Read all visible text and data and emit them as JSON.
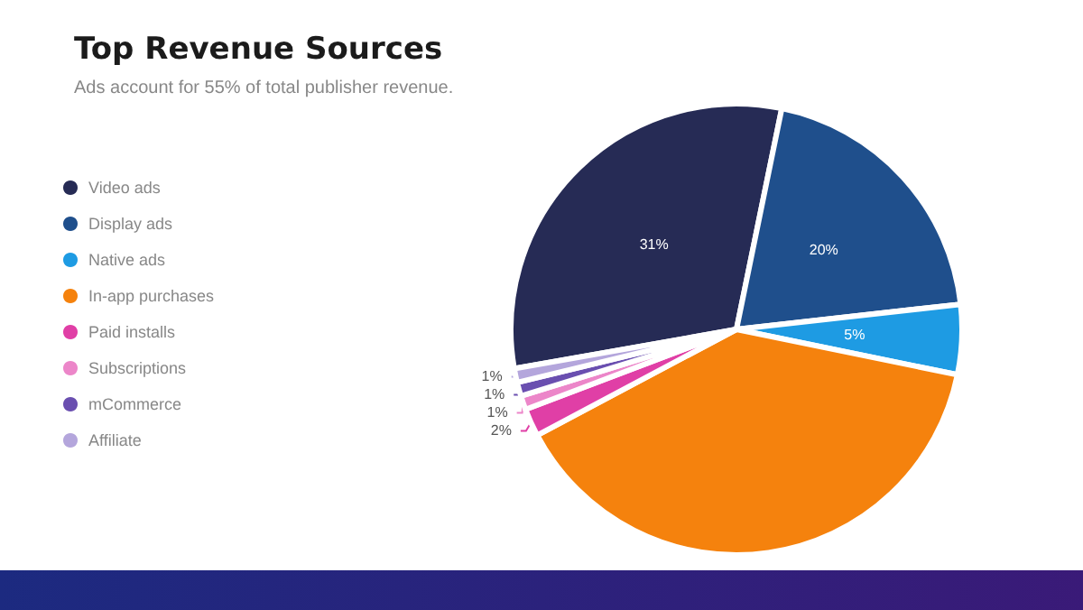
{
  "chart_data": {
    "type": "pie",
    "title": "Top Revenue Sources",
    "subtitle": "Ads account for 55% of total publisher revenue.",
    "categories": [
      "Video ads",
      "Display ads",
      "Native ads",
      "In-app purchases",
      "Paid installs",
      "Subscriptions",
      "mCommerce",
      "Affiliate"
    ],
    "values": [
      31,
      20,
      5,
      39,
      2,
      1,
      1,
      1
    ],
    "colors": [
      "#262b55",
      "#1f4f8c",
      "#1e9be3",
      "#f5820d",
      "#e03fa6",
      "#ec86c9",
      "#6a4fb0",
      "#b4a6dc"
    ],
    "value_labels": [
      "31%",
      "20%",
      "5%",
      null,
      "2%",
      "1%",
      "1%",
      "1%"
    ],
    "legend": "left"
  }
}
